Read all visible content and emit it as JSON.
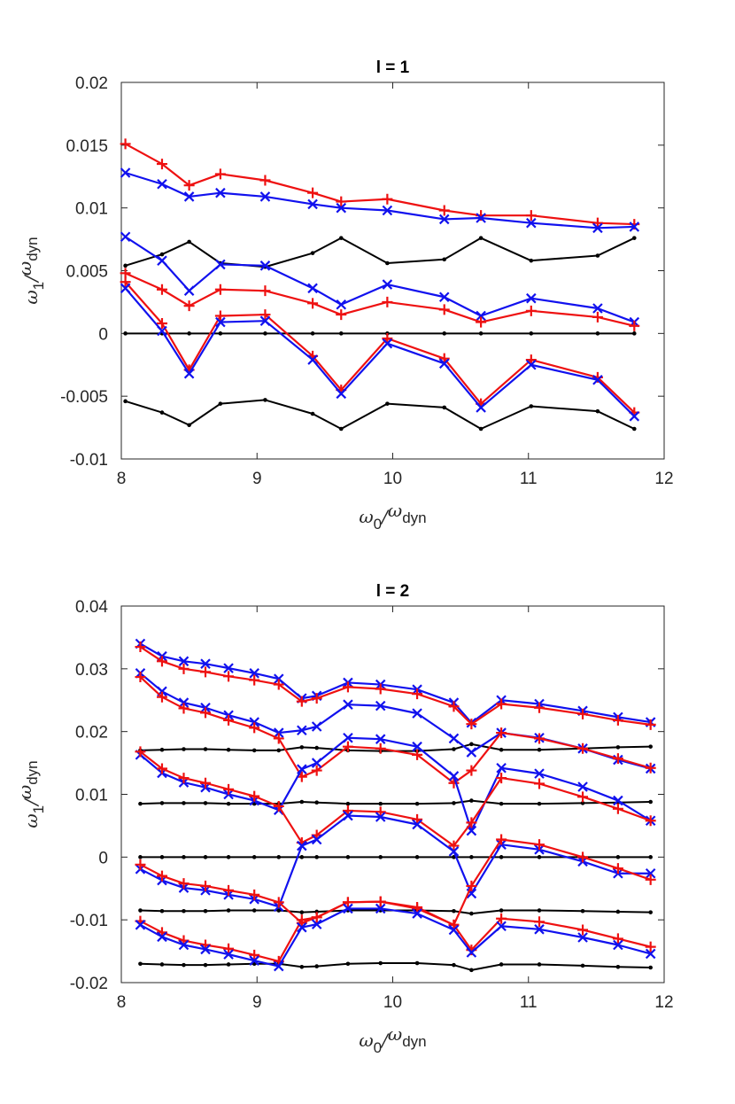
{
  "chart_data": [
    {
      "type": "line",
      "title": "l = 1",
      "xlabel": {
        "symbol": "ω",
        "sub": "0",
        "sep": "/",
        "symbol2": "ω",
        "sub2": "dyn"
      },
      "ylabel": {
        "symbol": "ω",
        "sub": "1",
        "sep": "/",
        "symbol2": "ω",
        "sub2": "dyn"
      },
      "xlim": [
        8,
        12
      ],
      "ylim": [
        -0.01,
        0.02
      ],
      "xticks": [
        8,
        9,
        10,
        11,
        12
      ],
      "xtick_labels": [
        "8",
        "9",
        "10",
        "11",
        "12"
      ],
      "yticks": [
        -0.01,
        -0.005,
        0,
        0.005,
        0.01,
        0.015,
        0.02
      ],
      "ytick_labels": [
        "-0.01",
        "-0.005",
        "0",
        "0.005",
        "0.01",
        "0.015",
        "0.02"
      ],
      "x": [
        8.03,
        8.3,
        8.5,
        8.73,
        9.06,
        9.41,
        9.62,
        9.96,
        10.38,
        10.65,
        11.02,
        11.51,
        11.78
      ],
      "colors": {
        "red": "#ee1111",
        "blue": "#1111ee",
        "black": "#000000"
      },
      "series": [
        {
          "name": "black-top",
          "marker": "dot",
          "color": "black",
          "values": [
            0.0054,
            0.0063,
            0.0073,
            0.0056,
            0.0053,
            0.0064,
            0.0076,
            0.0056,
            0.0059,
            0.0076,
            0.0058,
            0.0062,
            0.0076
          ]
        },
        {
          "name": "black-zero",
          "marker": "dot",
          "color": "black",
          "values": [
            0,
            0,
            0,
            0,
            0,
            0,
            0,
            0,
            0,
            0,
            0,
            0,
            0
          ]
        },
        {
          "name": "black-bottom",
          "marker": "dot",
          "color": "black",
          "values": [
            -0.0054,
            -0.0063,
            -0.0073,
            -0.0056,
            -0.0053,
            -0.0064,
            -0.0076,
            -0.0056,
            -0.0059,
            -0.0076,
            -0.0058,
            -0.0062,
            -0.0076
          ]
        },
        {
          "name": "red-1",
          "marker": "plus",
          "color": "red",
          "values": [
            0.0151,
            0.0135,
            0.0118,
            0.0127,
            0.0122,
            0.0112,
            0.0105,
            0.0107,
            0.0098,
            0.0094,
            0.0094,
            0.0088,
            0.0087
          ]
        },
        {
          "name": "blue-1",
          "marker": "cross",
          "color": "blue",
          "values": [
            0.0128,
            0.0119,
            0.0109,
            0.0112,
            0.0109,
            0.0103,
            0.01,
            0.0098,
            0.0091,
            0.0092,
            0.0088,
            0.0084,
            0.0085
          ]
        },
        {
          "name": "blue-2",
          "marker": "cross",
          "color": "blue",
          "values": [
            0.0077,
            0.0058,
            0.0034,
            0.0055,
            0.0054,
            0.0036,
            0.0023,
            0.0039,
            0.0029,
            0.0014,
            0.0028,
            0.002,
            0.0009
          ]
        },
        {
          "name": "red-2",
          "marker": "plus",
          "color": "red",
          "values": [
            0.0048,
            0.0035,
            0.0022,
            0.0035,
            0.0034,
            0.0024,
            0.0015,
            0.0025,
            0.0019,
            0.0009,
            0.0018,
            0.0013,
            0.0006
          ]
        },
        {
          "name": "red-3",
          "marker": "plus",
          "color": "red",
          "values": [
            0.0041,
            0.0008,
            -0.0029,
            0.0014,
            0.0015,
            -0.0018,
            -0.0045,
            -0.0004,
            -0.002,
            -0.0056,
            -0.0021,
            -0.0035,
            -0.0063
          ]
        },
        {
          "name": "blue-3",
          "marker": "cross",
          "color": "blue",
          "values": [
            0.0036,
            0.0002,
            -0.0032,
            0.0009,
            0.001,
            -0.0021,
            -0.0048,
            -0.0008,
            -0.0024,
            -0.0059,
            -0.0025,
            -0.0037,
            -0.0066
          ]
        }
      ]
    },
    {
      "type": "line",
      "title": "l = 2",
      "xlabel": {
        "symbol": "ω",
        "sub": "0",
        "sep": "/",
        "symbol2": "ω",
        "sub2": "dyn"
      },
      "ylabel": {
        "symbol": "ω",
        "sub": "1",
        "sep": "/",
        "symbol2": "ω",
        "sub2": "dyn"
      },
      "xlim": [
        8,
        12
      ],
      "ylim": [
        -0.02,
        0.04
      ],
      "xticks": [
        8,
        9,
        10,
        11,
        12
      ],
      "xtick_labels": [
        "8",
        "9",
        "10",
        "11",
        "12"
      ],
      "yticks": [
        -0.02,
        -0.01,
        0,
        0.01,
        0.02,
        0.03,
        0.04
      ],
      "ytick_labels": [
        "-0.02",
        "-0.01",
        "0",
        "0.01",
        "0.02",
        "0.03",
        "0.04"
      ],
      "x": [
        8.14,
        8.3,
        8.46,
        8.62,
        8.79,
        8.98,
        9.16,
        9.33,
        9.44,
        9.67,
        9.91,
        10.18,
        10.45,
        10.58,
        10.8,
        11.08,
        11.4,
        11.66,
        11.9
      ],
      "colors": {
        "red": "#ee1111",
        "blue": "#1111ee",
        "black": "#000000"
      },
      "series": [
        {
          "name": "black-1",
          "marker": "dot",
          "color": "black",
          "values": [
            0.017,
            0.0171,
            0.0172,
            0.0172,
            0.0171,
            0.017,
            0.017,
            0.0175,
            0.0174,
            0.017,
            0.0169,
            0.0169,
            0.0172,
            0.018,
            0.0171,
            0.0171,
            0.0173,
            0.0175,
            0.0176
          ]
        },
        {
          "name": "black-2",
          "marker": "dot",
          "color": "black",
          "values": [
            0.0085,
            0.0086,
            0.0086,
            0.0086,
            0.0085,
            0.0085,
            0.0085,
            0.0088,
            0.0087,
            0.0085,
            0.0085,
            0.0085,
            0.0086,
            0.009,
            0.0085,
            0.0085,
            0.0086,
            0.0087,
            0.0088
          ]
        },
        {
          "name": "black-zero",
          "marker": "dot",
          "color": "black",
          "values": [
            0,
            0,
            0,
            0,
            0,
            0,
            0,
            0,
            0,
            0,
            0,
            0,
            0,
            0,
            0,
            0,
            0,
            0,
            0
          ]
        },
        {
          "name": "black-3",
          "marker": "dot",
          "color": "black",
          "values": [
            -0.0085,
            -0.0086,
            -0.0086,
            -0.0086,
            -0.0085,
            -0.0085,
            -0.0085,
            -0.0088,
            -0.0087,
            -0.0085,
            -0.0085,
            -0.0085,
            -0.0086,
            -0.009,
            -0.0085,
            -0.0085,
            -0.0086,
            -0.0087,
            -0.0088
          ]
        },
        {
          "name": "black-4",
          "marker": "dot",
          "color": "black",
          "values": [
            -0.017,
            -0.0171,
            -0.0172,
            -0.0172,
            -0.0171,
            -0.017,
            -0.017,
            -0.0175,
            -0.0174,
            -0.017,
            -0.0169,
            -0.0169,
            -0.0172,
            -0.018,
            -0.0171,
            -0.0171,
            -0.0173,
            -0.0175,
            -0.0176
          ]
        },
        {
          "name": "blue-1",
          "marker": "cross",
          "color": "blue",
          "values": [
            0.034,
            0.032,
            0.0312,
            0.0308,
            0.0301,
            0.0293,
            0.0284,
            0.0253,
            0.0257,
            0.0278,
            0.0275,
            0.0267,
            0.0246,
            0.0214,
            0.025,
            0.0244,
            0.0233,
            0.0223,
            0.0215
          ]
        },
        {
          "name": "red-1",
          "marker": "plus",
          "color": "red",
          "values": [
            0.0335,
            0.0312,
            0.03,
            0.0295,
            0.0288,
            0.0282,
            0.0275,
            0.0248,
            0.0253,
            0.0271,
            0.0268,
            0.026,
            0.024,
            0.0212,
            0.0244,
            0.0238,
            0.0228,
            0.0218,
            0.0211
          ]
        },
        {
          "name": "blue-2",
          "marker": "cross",
          "color": "blue",
          "values": [
            0.0293,
            0.0264,
            0.0246,
            0.0238,
            0.0226,
            0.0215,
            0.0198,
            0.0202,
            0.0208,
            0.0243,
            0.0241,
            0.0229,
            0.0189,
            0.0167,
            0.0198,
            0.019,
            0.0173,
            0.0155,
            0.0141
          ]
        },
        {
          "name": "red-2",
          "marker": "plus",
          "color": "red",
          "values": [
            0.0287,
            0.0255,
            0.0237,
            0.023,
            0.0218,
            0.0206,
            0.0189,
            0.0128,
            0.0138,
            0.0176,
            0.0173,
            0.0163,
            0.0118,
            0.0138,
            0.0198,
            0.0189,
            0.0173,
            0.0157,
            0.0142
          ]
        },
        {
          "name": "blue-3",
          "marker": "cross",
          "color": "blue",
          "values": [
            0.0163,
            0.0134,
            0.0119,
            0.0111,
            0.01,
            0.009,
            0.0075,
            0.014,
            0.015,
            0.019,
            0.0188,
            0.0176,
            0.0129,
            0.0042,
            0.0142,
            0.0133,
            0.0112,
            0.009,
            0.0058
          ]
        },
        {
          "name": "red-3",
          "marker": "plus",
          "color": "red",
          "values": [
            0.0168,
            0.0141,
            0.0126,
            0.0118,
            0.0108,
            0.0097,
            0.0081,
            0.0023,
            0.0035,
            0.0074,
            0.0072,
            0.006,
            0.0018,
            0.0055,
            0.0126,
            0.0117,
            0.0096,
            0.0077,
            0.0058
          ]
        },
        {
          "name": "blue-4",
          "marker": "cross",
          "color": "blue",
          "values": [
            -0.0019,
            -0.0037,
            -0.0049,
            -0.0053,
            -0.006,
            -0.0067,
            -0.0079,
            0.0018,
            0.0028,
            0.0066,
            0.0064,
            0.0052,
            0.0009,
            -0.0058,
            0.002,
            0.0012,
            -0.0007,
            -0.0026,
            -0.0026
          ]
        },
        {
          "name": "red-4",
          "marker": "plus",
          "color": "red",
          "values": [
            -0.0012,
            -0.003,
            -0.0042,
            -0.0046,
            -0.0053,
            -0.006,
            -0.0072,
            -0.0105,
            -0.0096,
            -0.0072,
            -0.0071,
            -0.008,
            -0.0108,
            -0.0046,
            0.0028,
            0.002,
            0.0,
            -0.0018,
            -0.0036
          ]
        },
        {
          "name": "red-5",
          "marker": "plus",
          "color": "red",
          "values": [
            -0.0102,
            -0.012,
            -0.0133,
            -0.014,
            -0.0146,
            -0.0156,
            -0.0166,
            -0.01,
            -0.0096,
            -0.0072,
            -0.0071,
            -0.0082,
            -0.0108,
            -0.0148,
            -0.0098,
            -0.0103,
            -0.0116,
            -0.013,
            -0.0143
          ]
        },
        {
          "name": "blue-5",
          "marker": "cross",
          "color": "blue",
          "values": [
            -0.0108,
            -0.0127,
            -0.014,
            -0.0147,
            -0.0155,
            -0.0165,
            -0.0174,
            -0.0112,
            -0.0107,
            -0.0082,
            -0.0082,
            -0.009,
            -0.0116,
            -0.0152,
            -0.011,
            -0.0115,
            -0.0128,
            -0.014,
            -0.0154
          ]
        }
      ]
    }
  ]
}
